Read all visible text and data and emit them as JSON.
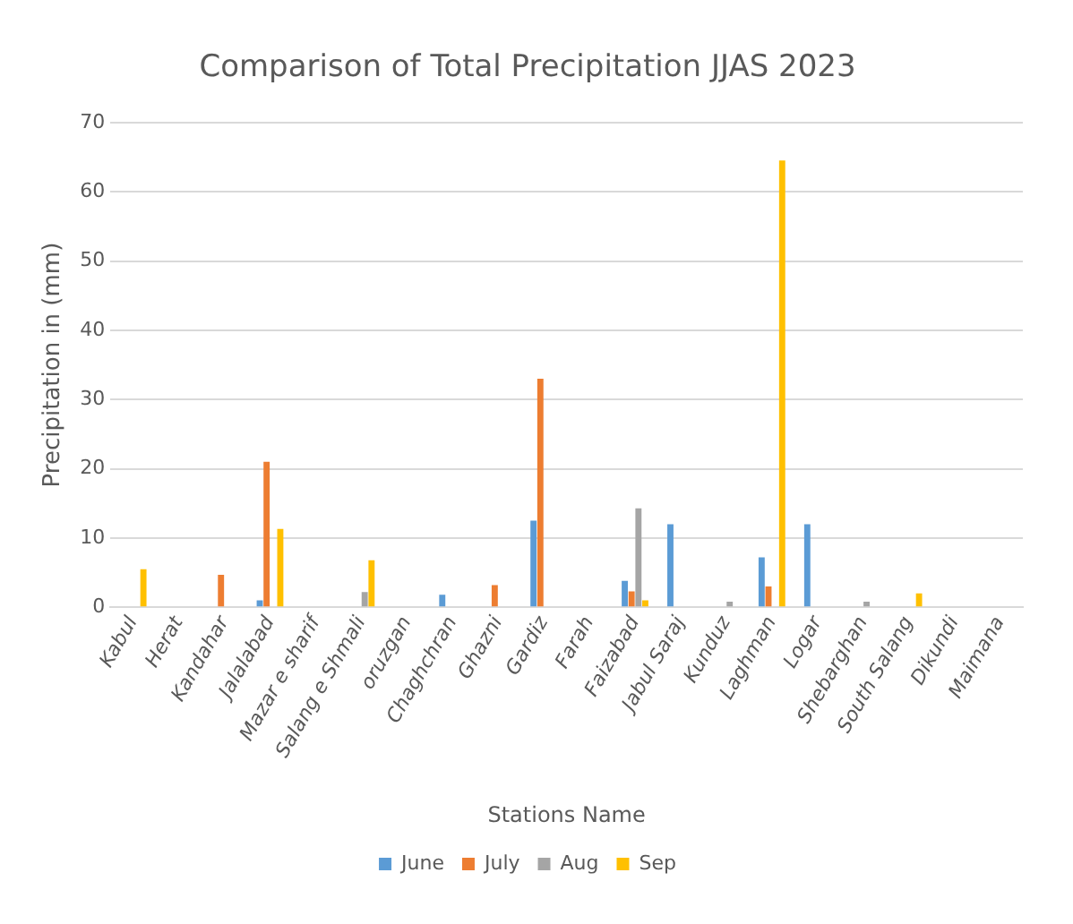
{
  "chart_data": {
    "type": "bar",
    "title": "Comparison of Total Precipitation JJAS 2023",
    "xlabel": "Stations Name",
    "ylabel": "Precipitation in (mm)",
    "categories": [
      "Kabul",
      "Herat",
      "Kandahar",
      "Jalalabad",
      "Mazar e sharif",
      "Salang e Shmali",
      "oruzgan",
      "Chaghchran",
      "Ghazni",
      "Gardiz",
      "Farah",
      "Faizabad",
      "Jabul Saraj",
      "Kunduz",
      "Laghman",
      "Logar",
      "Shebarghan",
      "South Salang",
      "Dikundi",
      "Maimana"
    ],
    "series": [
      {
        "name": "June",
        "color": "#5b9bd5",
        "values": [
          null,
          null,
          null,
          1,
          null,
          null,
          null,
          1.8,
          null,
          12.5,
          null,
          3.8,
          12,
          null,
          7.2,
          12,
          null,
          null,
          null,
          null
        ]
      },
      {
        "name": "July",
        "color": "#ed7d31",
        "values": [
          null,
          null,
          4.7,
          21,
          null,
          null,
          null,
          null,
          3.2,
          33,
          null,
          2.3,
          null,
          null,
          3,
          null,
          null,
          null,
          null,
          null
        ]
      },
      {
        "name": "Aug",
        "color": "#a5a5a5",
        "values": [
          null,
          null,
          null,
          null,
          null,
          2.2,
          null,
          null,
          null,
          null,
          null,
          14.3,
          null,
          0.8,
          null,
          null,
          0.8,
          null,
          null,
          null
        ]
      },
      {
        "name": "Sep",
        "color": "#ffc000",
        "values": [
          5.5,
          null,
          null,
          11.3,
          null,
          6.8,
          null,
          null,
          null,
          null,
          null,
          1,
          null,
          null,
          64.5,
          null,
          null,
          2,
          null,
          null
        ]
      }
    ],
    "ylim": [
      0,
      70
    ],
    "yticks": [
      0,
      10,
      20,
      30,
      40,
      50,
      60,
      70
    ],
    "grid": "y",
    "legend": "bottom"
  }
}
